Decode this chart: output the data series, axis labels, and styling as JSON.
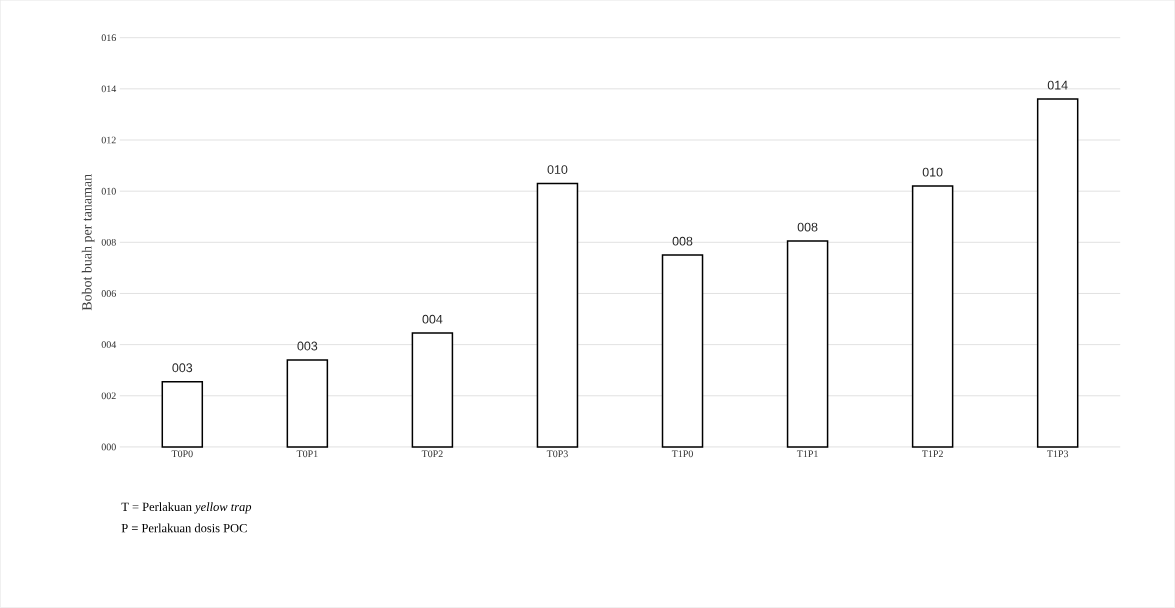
{
  "chart_data": {
    "type": "bar",
    "ylabel": "Bobot buah per tanaman",
    "categories": [
      "T0P0",
      "T0P1",
      "T0P2",
      "T0P3",
      "T1P0",
      "T1P1",
      "T1P2",
      "T1P3"
    ],
    "values": [
      2.55,
      3.4,
      4.45,
      10.3,
      7.5,
      8.05,
      10.2,
      13.6
    ],
    "value_labels": [
      "003",
      "003",
      "004",
      "010",
      "008",
      "008",
      "010",
      "014"
    ],
    "color": "#ffffff",
    "ylim": [
      0,
      16
    ],
    "yticks": [
      {
        "value": 0,
        "label": "000"
      },
      {
        "value": 2,
        "label": "002"
      },
      {
        "value": 4,
        "label": "004"
      },
      {
        "value": 6,
        "label": "006"
      },
      {
        "value": 8,
        "label": "008"
      },
      {
        "value": 10,
        "label": "010"
      },
      {
        "value": 12,
        "label": "012"
      },
      {
        "value": 14,
        "label": "014"
      },
      {
        "value": 16,
        "label": "016"
      }
    ],
    "grid": "y",
    "annotations": [
      "T = Perlakuan *yellow trap*",
      "P = Perlakuan dosis POC"
    ]
  }
}
